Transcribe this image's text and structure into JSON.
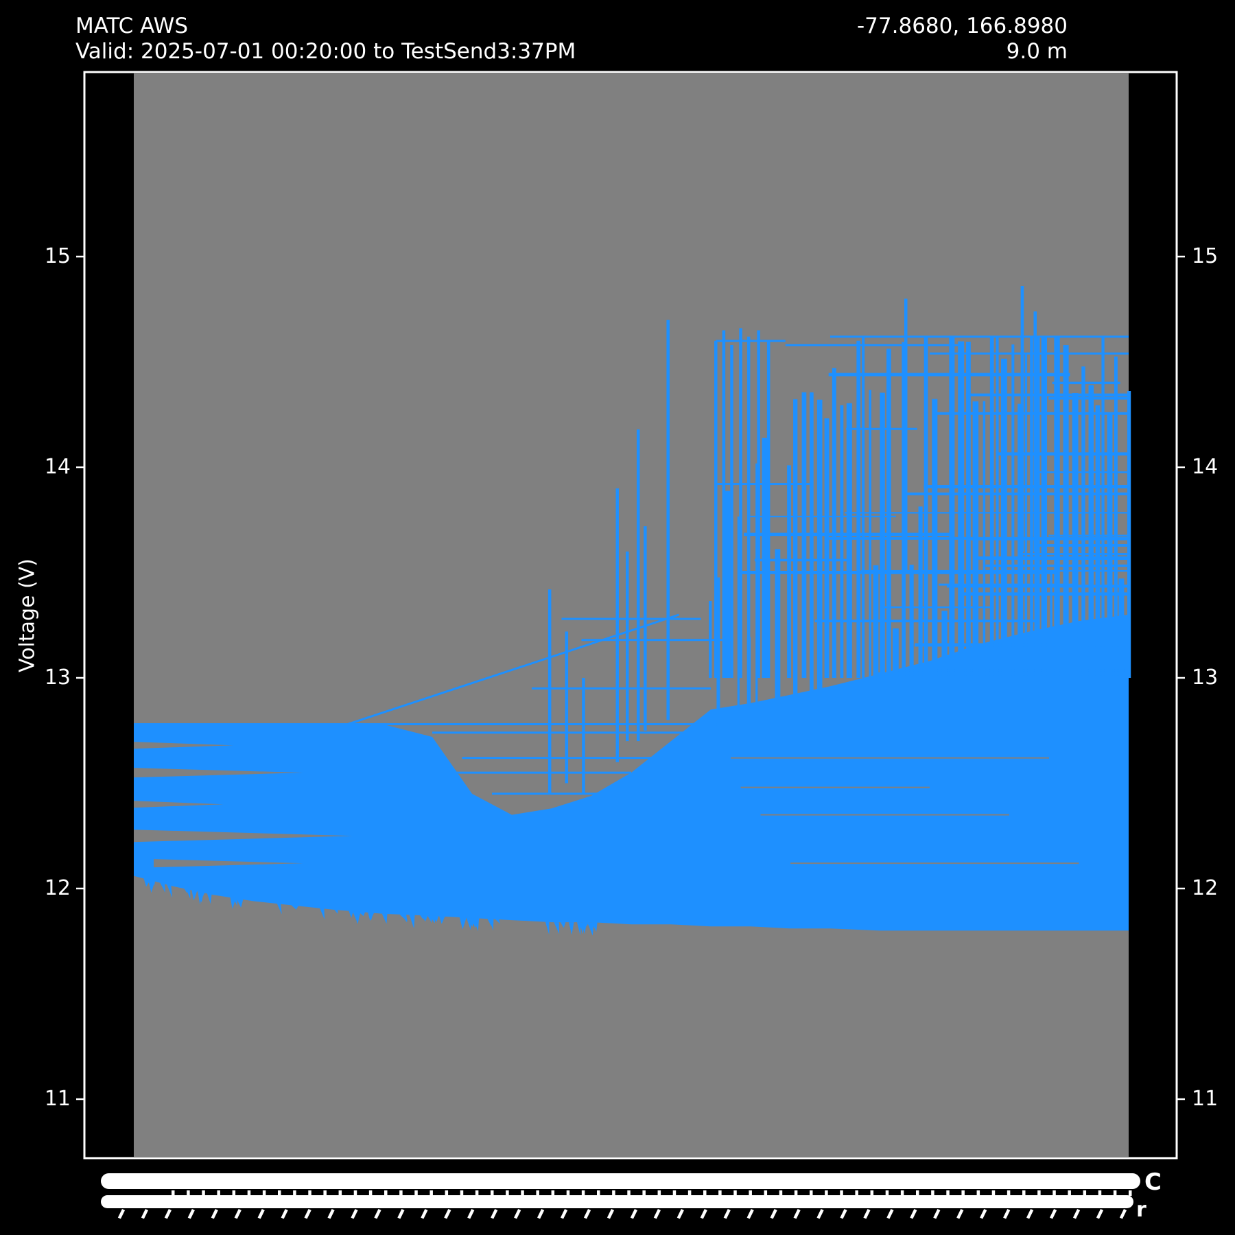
{
  "header": {
    "station": "MATC AWS",
    "valid_range": "Valid: 2025-07-01 00:20:00 to TestSend3:37PM",
    "coordinates": "-77.8680, 166.8980",
    "elevation": "9.0 m"
  },
  "axes": {
    "ylabel": "Voltage (V)",
    "ytick_labels": [
      "15",
      "14",
      "13",
      "12",
      "11"
    ],
    "smear_end_glyphs": [
      "C",
      "r"
    ],
    "x_axis_note": "x tick timestamp labels overlap into illegible solid white bands"
  },
  "colors": {
    "background": "#000000",
    "frame": "#ffffff",
    "text": "#ffffff",
    "span_gray": "#808080",
    "series_blue": "#1e90ff"
  },
  "chart_data": {
    "type": "line",
    "title": "MATC AWS",
    "subtitle": "Valid: 2025-07-01 00:20:00 to TestSend3:37PM",
    "right_title": "-77.8680, 166.8980",
    "right_subtitle": "9.0 m",
    "ylabel": "Voltage (V)",
    "ylim": [
      10.72,
      15.88
    ],
    "ytick_values": [
      15,
      14,
      13,
      12,
      11
    ],
    "x_axis": {
      "tick_labels_legible": false
    },
    "legend": "none",
    "grid": "off",
    "shaded_span": {
      "color": "#808080",
      "x0_frac": 0.0,
      "x1_frac": 1.0
    },
    "series": [
      {
        "name": "Voltage (V)",
        "color": "#1e90ff",
        "envelope_frac": [
          0.0,
          0.04,
          0.08,
          0.12,
          0.16,
          0.2,
          0.25,
          0.3,
          0.34,
          0.38,
          0.42,
          0.46,
          0.5,
          0.54,
          0.58,
          0.62,
          0.66,
          0.7,
          0.75,
          0.8,
          0.85,
          0.9,
          0.95,
          1.0
        ],
        "envelope_vmax": [
          12.78,
          12.78,
          12.78,
          12.78,
          12.78,
          12.78,
          12.78,
          12.72,
          12.45,
          12.35,
          12.38,
          12.44,
          12.55,
          12.7,
          12.85,
          12.88,
          12.92,
          12.96,
          13.02,
          13.08,
          13.16,
          13.22,
          13.27,
          13.3
        ],
        "envelope_vmin": [
          12.06,
          12.01,
          11.97,
          11.94,
          11.92,
          11.9,
          11.88,
          11.87,
          11.86,
          11.85,
          11.84,
          11.84,
          11.83,
          11.83,
          11.82,
          11.82,
          11.81,
          11.81,
          11.8,
          11.8,
          11.8,
          11.8,
          11.8,
          11.8
        ],
        "dense_mass": {
          "f_start": 0.578,
          "v_base": 12.9,
          "v_top_typical": 14.55
        }
      }
    ],
    "spikes": [
      {
        "f": 0.418,
        "v": 13.42,
        "b": 12.45
      },
      {
        "f": 0.435,
        "v": 13.22,
        "b": 12.5
      },
      {
        "f": 0.452,
        "v": 13.0,
        "b": 12.45
      },
      {
        "f": 0.486,
        "v": 13.9,
        "b": 12.6
      },
      {
        "f": 0.496,
        "v": 13.6,
        "b": 12.7
      },
      {
        "f": 0.507,
        "v": 14.18,
        "b": 12.7
      },
      {
        "f": 0.514,
        "v": 13.72,
        "b": 12.75
      },
      {
        "f": 0.537,
        "v": 14.7,
        "b": 12.8
      },
      {
        "f": 0.585,
        "v": 14.6,
        "b": 13.0
      },
      {
        "f": 0.593,
        "v": 14.65,
        "b": 13.0
      },
      {
        "f": 0.601,
        "v": 14.58,
        "b": 13.0
      },
      {
        "f": 0.61,
        "v": 14.66,
        "b": 13.0
      },
      {
        "f": 0.618,
        "v": 14.62,
        "b": 13.0
      },
      {
        "f": 0.628,
        "v": 14.65,
        "b": 13.0
      },
      {
        "f": 0.638,
        "v": 14.6,
        "b": 13.0
      },
      {
        "f": 0.776,
        "v": 14.8,
        "b": 13.5
      },
      {
        "f": 0.893,
        "v": 14.86,
        "b": 13.6
      },
      {
        "f": 0.906,
        "v": 14.74,
        "b": 13.6
      }
    ],
    "diagonal": {
      "f0": 0.215,
      "v0": 12.78,
      "f1": 0.548,
      "v1": 13.3
    },
    "ext_lines": [
      {
        "f0": 0.0,
        "f1": 0.6,
        "v": 12.78,
        "w": 3
      },
      {
        "f0": 0.3,
        "f1": 0.58,
        "v": 12.74,
        "w": 3
      },
      {
        "f0": 0.33,
        "f1": 0.52,
        "v": 12.62,
        "w": 3
      },
      {
        "f0": 0.32,
        "f1": 0.5,
        "v": 12.55,
        "w": 3
      },
      {
        "f0": 0.36,
        "f1": 0.55,
        "v": 12.45,
        "w": 3
      },
      {
        "f0": 0.3,
        "f1": 0.5,
        "v": 12.3,
        "w": 4
      },
      {
        "f0": 0.25,
        "f1": 0.47,
        "v": 12.18,
        "w": 3
      },
      {
        "f0": 0.4,
        "f1": 0.58,
        "v": 12.95,
        "w": 3
      },
      {
        "f0": 0.45,
        "f1": 0.6,
        "v": 13.18,
        "w": 3
      },
      {
        "f0": 0.43,
        "f1": 0.57,
        "v": 13.28,
        "w": 3
      }
    ],
    "left_gaps": [
      {
        "f0": 0.0,
        "v": 12.68,
        "len": 0.1,
        "t": 5
      },
      {
        "f0": 0.0,
        "v": 12.55,
        "len": 0.17,
        "t": 7
      },
      {
        "f0": 0.0,
        "v": 12.4,
        "len": 0.09,
        "t": 5
      },
      {
        "f0": 0.0,
        "v": 12.25,
        "len": 0.22,
        "t": 9
      },
      {
        "f0": 0.02,
        "v": 12.12,
        "len": 0.15,
        "t": 6
      }
    ],
    "gray_lines": [
      {
        "f0": 0.6,
        "f1": 0.92,
        "v": 12.62,
        "w": 2
      },
      {
        "f0": 0.63,
        "f1": 0.88,
        "v": 12.35,
        "w": 2
      },
      {
        "f0": 0.66,
        "f1": 0.95,
        "v": 12.12,
        "w": 2
      },
      {
        "f0": 0.61,
        "f1": 0.8,
        "v": 12.48,
        "w": 2
      }
    ],
    "top_edges": [
      {
        "f0": 0.585,
        "f1": 0.655,
        "v": 14.6,
        "w": 3
      },
      {
        "f0": 0.585,
        "f1": 0.68,
        "v": 13.92,
        "w": 3
      },
      {
        "f0": 0.655,
        "f1": 0.83,
        "v": 14.58,
        "w": 3
      },
      {
        "f0": 0.7,
        "f1": 1.0,
        "v": 14.62,
        "w": 3
      },
      {
        "f0": 0.8,
        "f1": 1.0,
        "v": 14.54,
        "w": 3
      }
    ],
    "texture": {
      "seed": 20250701,
      "stripe_f0": 0.578,
      "stripe_vbase": 12.9,
      "crosshatch_count": 36,
      "sawtooth_count": 60,
      "smear_tick_count": 64,
      "smear_tail_count": 44
    }
  }
}
